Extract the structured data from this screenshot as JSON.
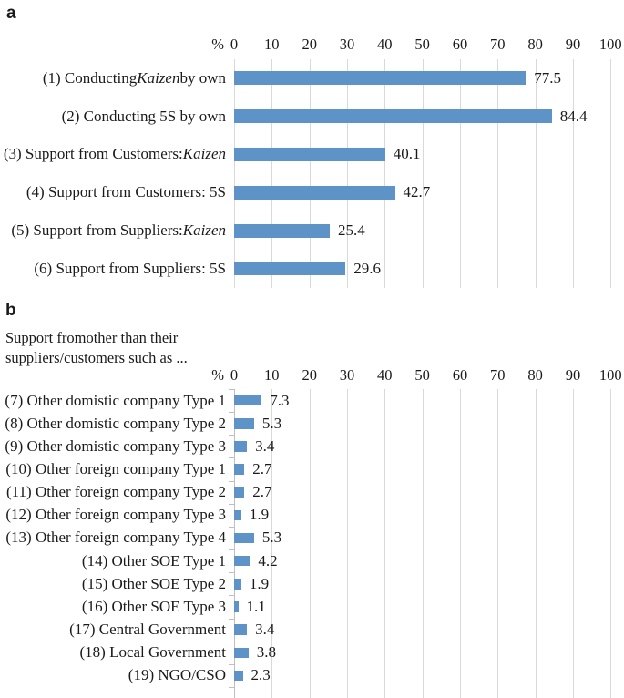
{
  "panels": {
    "a": {
      "label": "a"
    },
    "b": {
      "label": "b"
    }
  },
  "colors": {
    "bar": "#5e93c7",
    "gridline": "#d9d9d9",
    "axis": "#bfbfbf",
    "text": "#1a1a1a"
  },
  "chart_data": [
    {
      "type": "bar",
      "orientation": "horizontal",
      "panel": "a",
      "title": "",
      "unit": "%",
      "xlim": [
        0,
        100
      ],
      "xticks": [
        0,
        10,
        20,
        30,
        40,
        50,
        60,
        70,
        80,
        90,
        100
      ],
      "grid": true,
      "legend": "none",
      "categories": [
        "(1) Conducting Kaizen by own",
        "(2) Conducting 5S by own",
        "(3) Support from Customers: Kaizen",
        "(4) Support from Customers: 5S",
        "(5) Support from Suppliers: Kaizen",
        "(6) Support from Suppliers: 5S"
      ],
      "categories_rich": [
        [
          {
            "t": "(1) Conducting "
          },
          {
            "t": "Kaizen",
            "i": true
          },
          {
            "t": " by own"
          }
        ],
        [
          {
            "t": "(2) Conducting 5S by own"
          }
        ],
        [
          {
            "t": "(3) Support from Customers: "
          },
          {
            "t": "Kaizen",
            "i": true
          }
        ],
        [
          {
            "t": "(4) Support from Customers: 5S"
          }
        ],
        [
          {
            "t": "(5) Support from Suppliers: "
          },
          {
            "t": "Kaizen",
            "i": true
          }
        ],
        [
          {
            "t": "(6) Support from Suppliers: 5S"
          }
        ]
      ],
      "values": [
        77.5,
        84.4,
        40.1,
        42.7,
        25.4,
        29.6
      ],
      "value_labels": [
        "77.5",
        "84.4",
        "40.1",
        "42.7",
        "25.4",
        "29.6"
      ]
    },
    {
      "type": "bar",
      "orientation": "horizontal",
      "panel": "b",
      "title": "Support fromother than their suppliers/customers such as ...",
      "title_lines": [
        "Support fromother than their",
        "suppliers/customers such as ..."
      ],
      "unit": "%",
      "xlim": [
        0,
        100
      ],
      "xticks": [
        0,
        10,
        20,
        30,
        40,
        50,
        60,
        70,
        80,
        90,
        100
      ],
      "grid": true,
      "legend": "none",
      "categories": [
        "(7) Other domistic company Type 1",
        "(8) Other domistic company Type 2",
        "(9) Other domistic company Type 3",
        "(10) Other foreign company Type 1",
        "(11) Other foreign company Type 2",
        "(12) Other foreign company Type 3",
        "(13) Other foreign company Type 4",
        "(14) Other SOE Type 1",
        "(15) Other SOE Type 2",
        "(16) Other SOE Type 3",
        "(17) Central Government",
        "(18) Local Government",
        "(19) NGO/CSO"
      ],
      "values": [
        7.3,
        5.3,
        3.4,
        2.7,
        2.7,
        1.9,
        5.3,
        4.2,
        1.9,
        1.1,
        3.4,
        3.8,
        2.3
      ],
      "value_labels": [
        "7.3",
        "5.3",
        "3.4",
        "2.7",
        "2.7",
        "1.9",
        "5.3",
        "4.2",
        "1.9",
        "1.1",
        "3.4",
        "3.8",
        "2.3"
      ]
    }
  ]
}
